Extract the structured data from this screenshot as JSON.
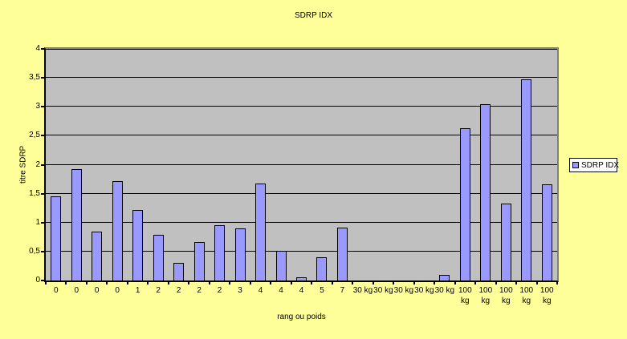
{
  "chart_data": {
    "type": "bar",
    "title": "SDRP IDX",
    "xlabel": "rang ou poids",
    "ylabel": "titre SDRP",
    "categories": [
      "0",
      "0",
      "0",
      "0",
      "1",
      "2",
      "2",
      "2",
      "2",
      "3",
      "4",
      "4",
      "4",
      "5",
      "7",
      "30 kg",
      "30 kg",
      "30 kg",
      "30 kg",
      "30 kg",
      "100 kg",
      "100 kg",
      "100 kg",
      "100 kg",
      "100 kg"
    ],
    "values": [
      1.45,
      1.93,
      0.85,
      1.72,
      1.22,
      0.79,
      0.3,
      0.67,
      0.96,
      0.9,
      1.67,
      0.51,
      0.05,
      0.4,
      0.91,
      0,
      0,
      0,
      0,
      0.1,
      2.63,
      3.05,
      1.33,
      3.48,
      1.66
    ],
    "ylim": [
      0,
      4
    ],
    "ytick_step": 0.5,
    "ytick_labels": [
      "0",
      "0,5",
      "1",
      "1,5",
      "2",
      "2,5",
      "3",
      "3,5",
      "4"
    ],
    "grid": true,
    "legend": {
      "label": "SDRP IDX",
      "position": "right"
    },
    "colors": {
      "background": "#FFFF99",
      "plot_background": "#C0C0C0",
      "plot_border": "#808080",
      "bar_fill": "#9999FF",
      "bar_border": "#000000",
      "text": "#000000",
      "legend_background": "#FFFFFF"
    }
  }
}
